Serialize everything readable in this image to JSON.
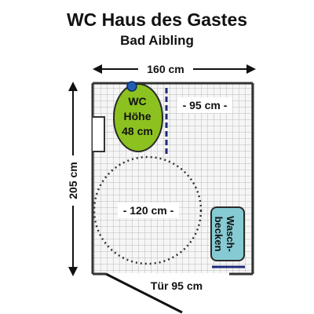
{
  "title": "WC Haus des Gastes",
  "subtitle": "Bad Aibling",
  "dimensions": {
    "width": "160 cm",
    "depth": "205 cm",
    "side_space": "- 95 cm -",
    "turning_circle": "- 120 cm -",
    "door": "Tür 95 cm"
  },
  "fixtures": {
    "wc": {
      "lines": [
        "WC",
        "Höhe",
        "48 cm"
      ],
      "color": "#8cc21f"
    },
    "sink": {
      "lines": [
        "Wasch-",
        "becken"
      ],
      "color": "#86cbd3"
    }
  },
  "colors": {
    "tile_grid": "#bbbbbb",
    "wall": "#333333",
    "grab_bar": "#1d2a7a",
    "flush_button": "#1f5fb3"
  }
}
